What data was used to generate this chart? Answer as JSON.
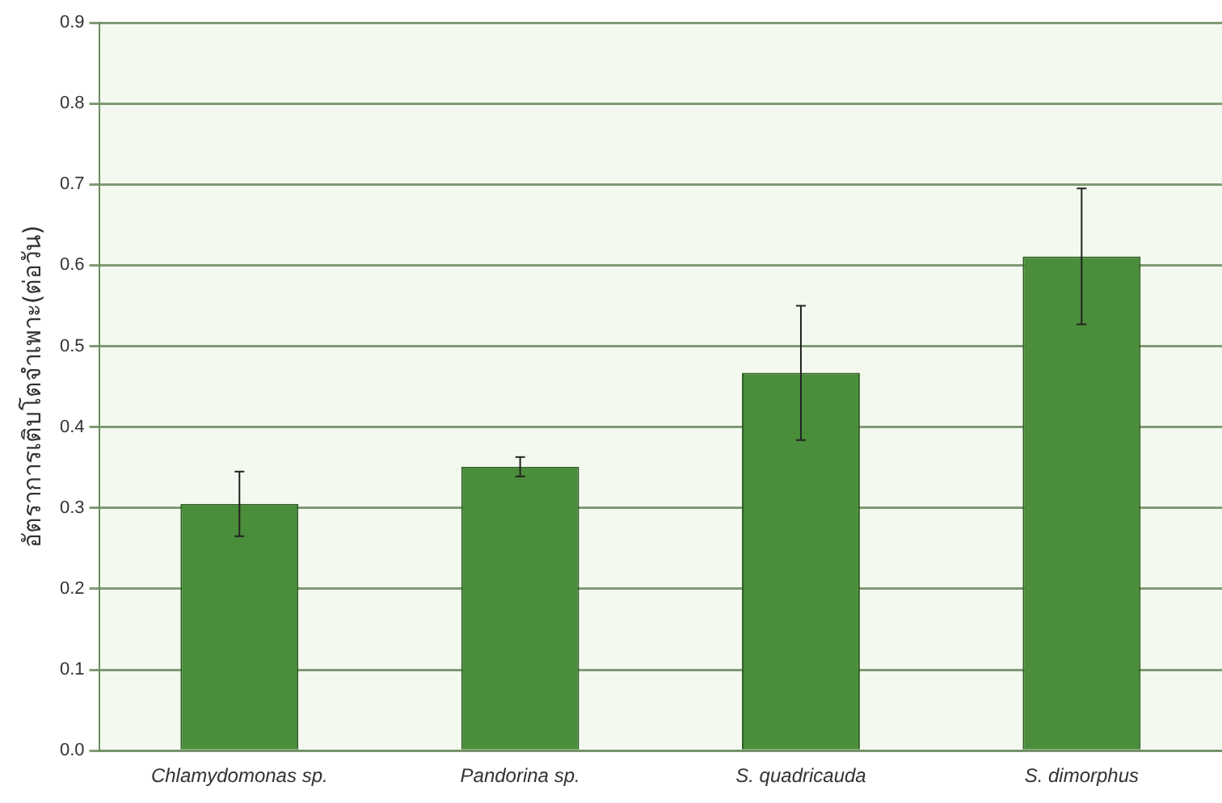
{
  "chart_data": {
    "type": "bar",
    "ylabel": "อัตราการเติบโตจำเพาะ(ต่อวัน)",
    "categories": [
      "Chlamydomonas sp.",
      "Pandorina sp.",
      "S. quadricauda",
      "S. dimorphus"
    ],
    "values": [
      0.305,
      0.351,
      0.467,
      0.611
    ],
    "errors": [
      0.04,
      0.012,
      0.083,
      0.084
    ],
    "color": "#4a8d3a",
    "ylim": [
      0,
      0.9
    ],
    "yticks": [
      {
        "value": 0,
        "label": "0.0"
      },
      0.1,
      0.2,
      0.3,
      0.4,
      0.5,
      0.6,
      0.7,
      0.8,
      0.9
    ],
    "grid": "y"
  }
}
